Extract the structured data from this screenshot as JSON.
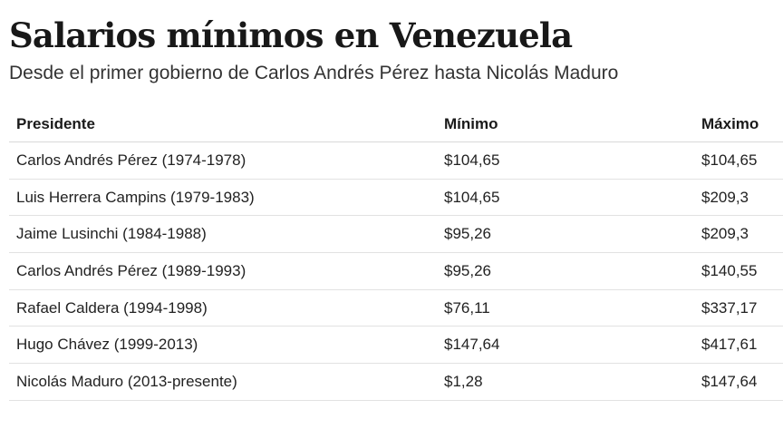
{
  "chart_data": {
    "type": "table",
    "title": "Salarios mínimos en Venezuela",
    "subtitle": "Desde el primer gobierno de Carlos Andrés Pérez hasta Nicolás Maduro",
    "columns": [
      "Presidente",
      "Mínimo",
      "Máximo"
    ],
    "rows": [
      [
        "Carlos Andrés Pérez (1974-1978)",
        "$104,65",
        "$104,65"
      ],
      [
        "Luis Herrera Campins (1979-1983)",
        "$104,65",
        "$209,3"
      ],
      [
        "Jaime Lusinchi (1984-1988)",
        "$95,26",
        "$209,3"
      ],
      [
        "Carlos Andrés Pérez (1989-1993)",
        "$95,26",
        "$140,55"
      ],
      [
        "Rafael Caldera (1994-1998)",
        "$76,11",
        "$337,17"
      ],
      [
        "Hugo Chávez (1999-2013)",
        "$147,64",
        "$417,61"
      ],
      [
        "Nicolás Maduro (2013-presente)",
        "$1,28",
        "$147,64"
      ]
    ]
  }
}
